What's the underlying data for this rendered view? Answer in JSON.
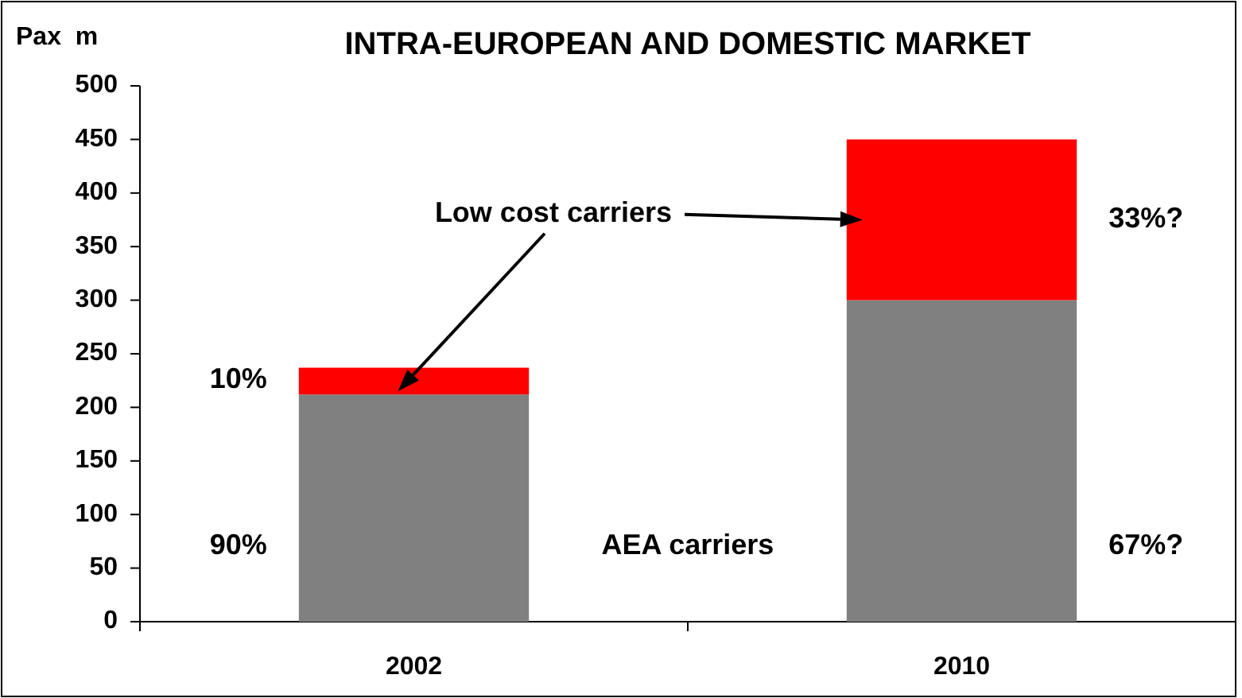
{
  "chart_data": {
    "type": "bar",
    "title": "INTRA-EUROPEAN AND DOMESTIC MARKET",
    "ylabel": "Pax  m",
    "categories": [
      "2002",
      "2010"
    ],
    "stacked": true,
    "series": [
      {
        "name": "AEA carriers",
        "color": "#808080",
        "values": [
          212,
          300
        ]
      },
      {
        "name": "Low cost carriers",
        "color": "#ff0000",
        "values": [
          25,
          150
        ]
      }
    ],
    "ylim": [
      0,
      500
    ],
    "yticks": [
      0,
      50,
      100,
      150,
      200,
      250,
      300,
      350,
      400,
      450,
      500
    ],
    "annotations": [
      "10%",
      "90%",
      "33%?",
      "67%?"
    ]
  }
}
